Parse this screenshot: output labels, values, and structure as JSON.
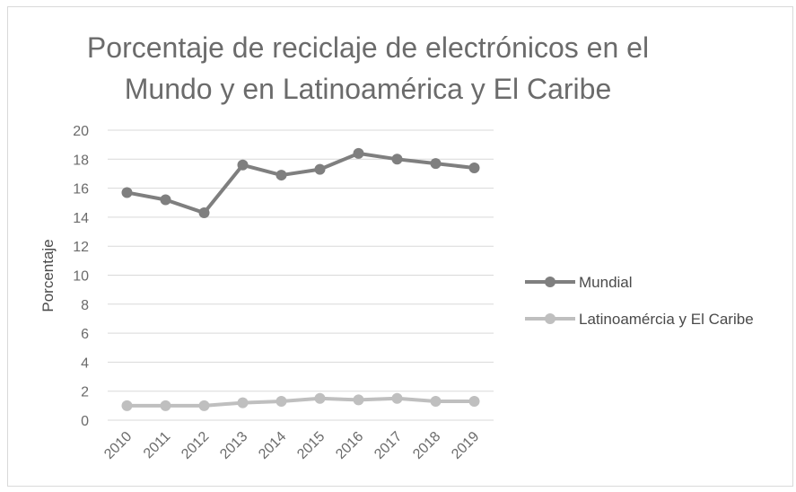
{
  "chart_data": {
    "type": "line",
    "title": "Porcentaje de reciclaje de electrónicos en el Mundo y en Latinoamérica y El Caribe",
    "title_lines": [
      "Porcentaje de reciclaje de electrónicos en el",
      "Mundo y en Latinoamérica y El Caribe"
    ],
    "xlabel": "",
    "ylabel": "Porcentaje",
    "categories": [
      "2010",
      "2011",
      "2012",
      "2013",
      "2014",
      "2015",
      "2016",
      "2017",
      "2018",
      "2019"
    ],
    "ylim": [
      0,
      20
    ],
    "yticks": [
      "0",
      "2",
      "4",
      "6",
      "8",
      "10",
      "12",
      "14",
      "16",
      "18",
      "20"
    ],
    "grid": true,
    "legend_position": "right",
    "series": [
      {
        "name": "Mundial",
        "color": "#7f7f7f",
        "values": [
          15.7,
          15.2,
          14.3,
          17.6,
          16.9,
          17.3,
          18.4,
          18.0,
          17.7,
          17.4
        ]
      },
      {
        "name": "Latinoamércia y El Caribe",
        "color": "#bfbfbf",
        "values": [
          1.0,
          1.0,
          1.0,
          1.2,
          1.3,
          1.5,
          1.4,
          1.5,
          1.3,
          1.3
        ]
      }
    ]
  }
}
